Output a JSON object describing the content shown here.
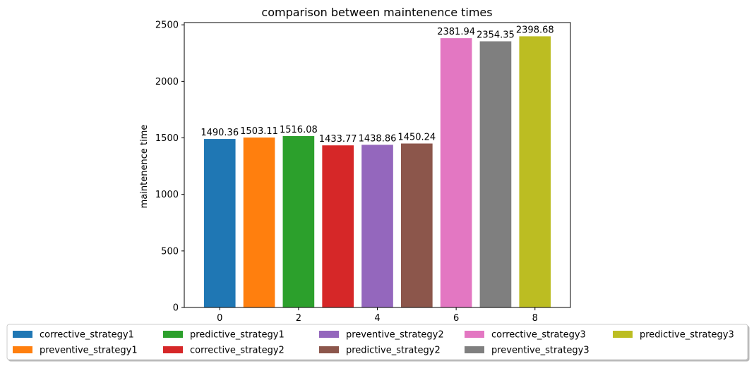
{
  "chart_data": {
    "type": "bar",
    "title": "comparison between maintenence times",
    "xlabel": "",
    "ylabel": "maintenence time",
    "xlim": [
      -0.9,
      8.9
    ],
    "ylim": [
      0,
      2520
    ],
    "xticks": [
      0,
      2,
      4,
      6,
      8
    ],
    "yticks": [
      0,
      500,
      1000,
      1500,
      2000,
      2500
    ],
    "grid": false,
    "legend_position": "below-center",
    "legend_columns": 5,
    "series": [
      {
        "name": "corrective_strategy1",
        "x": 0,
        "value": 1490.36,
        "label": "1490.36",
        "color": "#1f77b4"
      },
      {
        "name": "preventive_strategy1",
        "x": 1,
        "value": 1503.11,
        "label": "1503.11",
        "color": "#ff7f0e"
      },
      {
        "name": "predictive_strategy1",
        "x": 2,
        "value": 1516.08,
        "label": "1516.08",
        "color": "#2ca02c"
      },
      {
        "name": "corrective_strategy2",
        "x": 3,
        "value": 1433.77,
        "label": "1433.77",
        "color": "#d62728"
      },
      {
        "name": "preventive_strategy2",
        "x": 4,
        "value": 1438.86,
        "label": "1438.86",
        "color": "#9467bd"
      },
      {
        "name": "predictive_strategy2",
        "x": 5,
        "value": 1450.24,
        "label": "1450.24",
        "color": "#8c564b"
      },
      {
        "name": "corrective_strategy3",
        "x": 6,
        "value": 2381.94,
        "label": "2381.94",
        "color": "#e377c2"
      },
      {
        "name": "preventive_strategy3",
        "x": 7,
        "value": 2354.35,
        "label": "2354.35",
        "color": "#7f7f7f"
      },
      {
        "name": "predictive_strategy3",
        "x": 8,
        "value": 2398.68,
        "label": "2398.68",
        "color": "#bcbd22"
      }
    ]
  }
}
